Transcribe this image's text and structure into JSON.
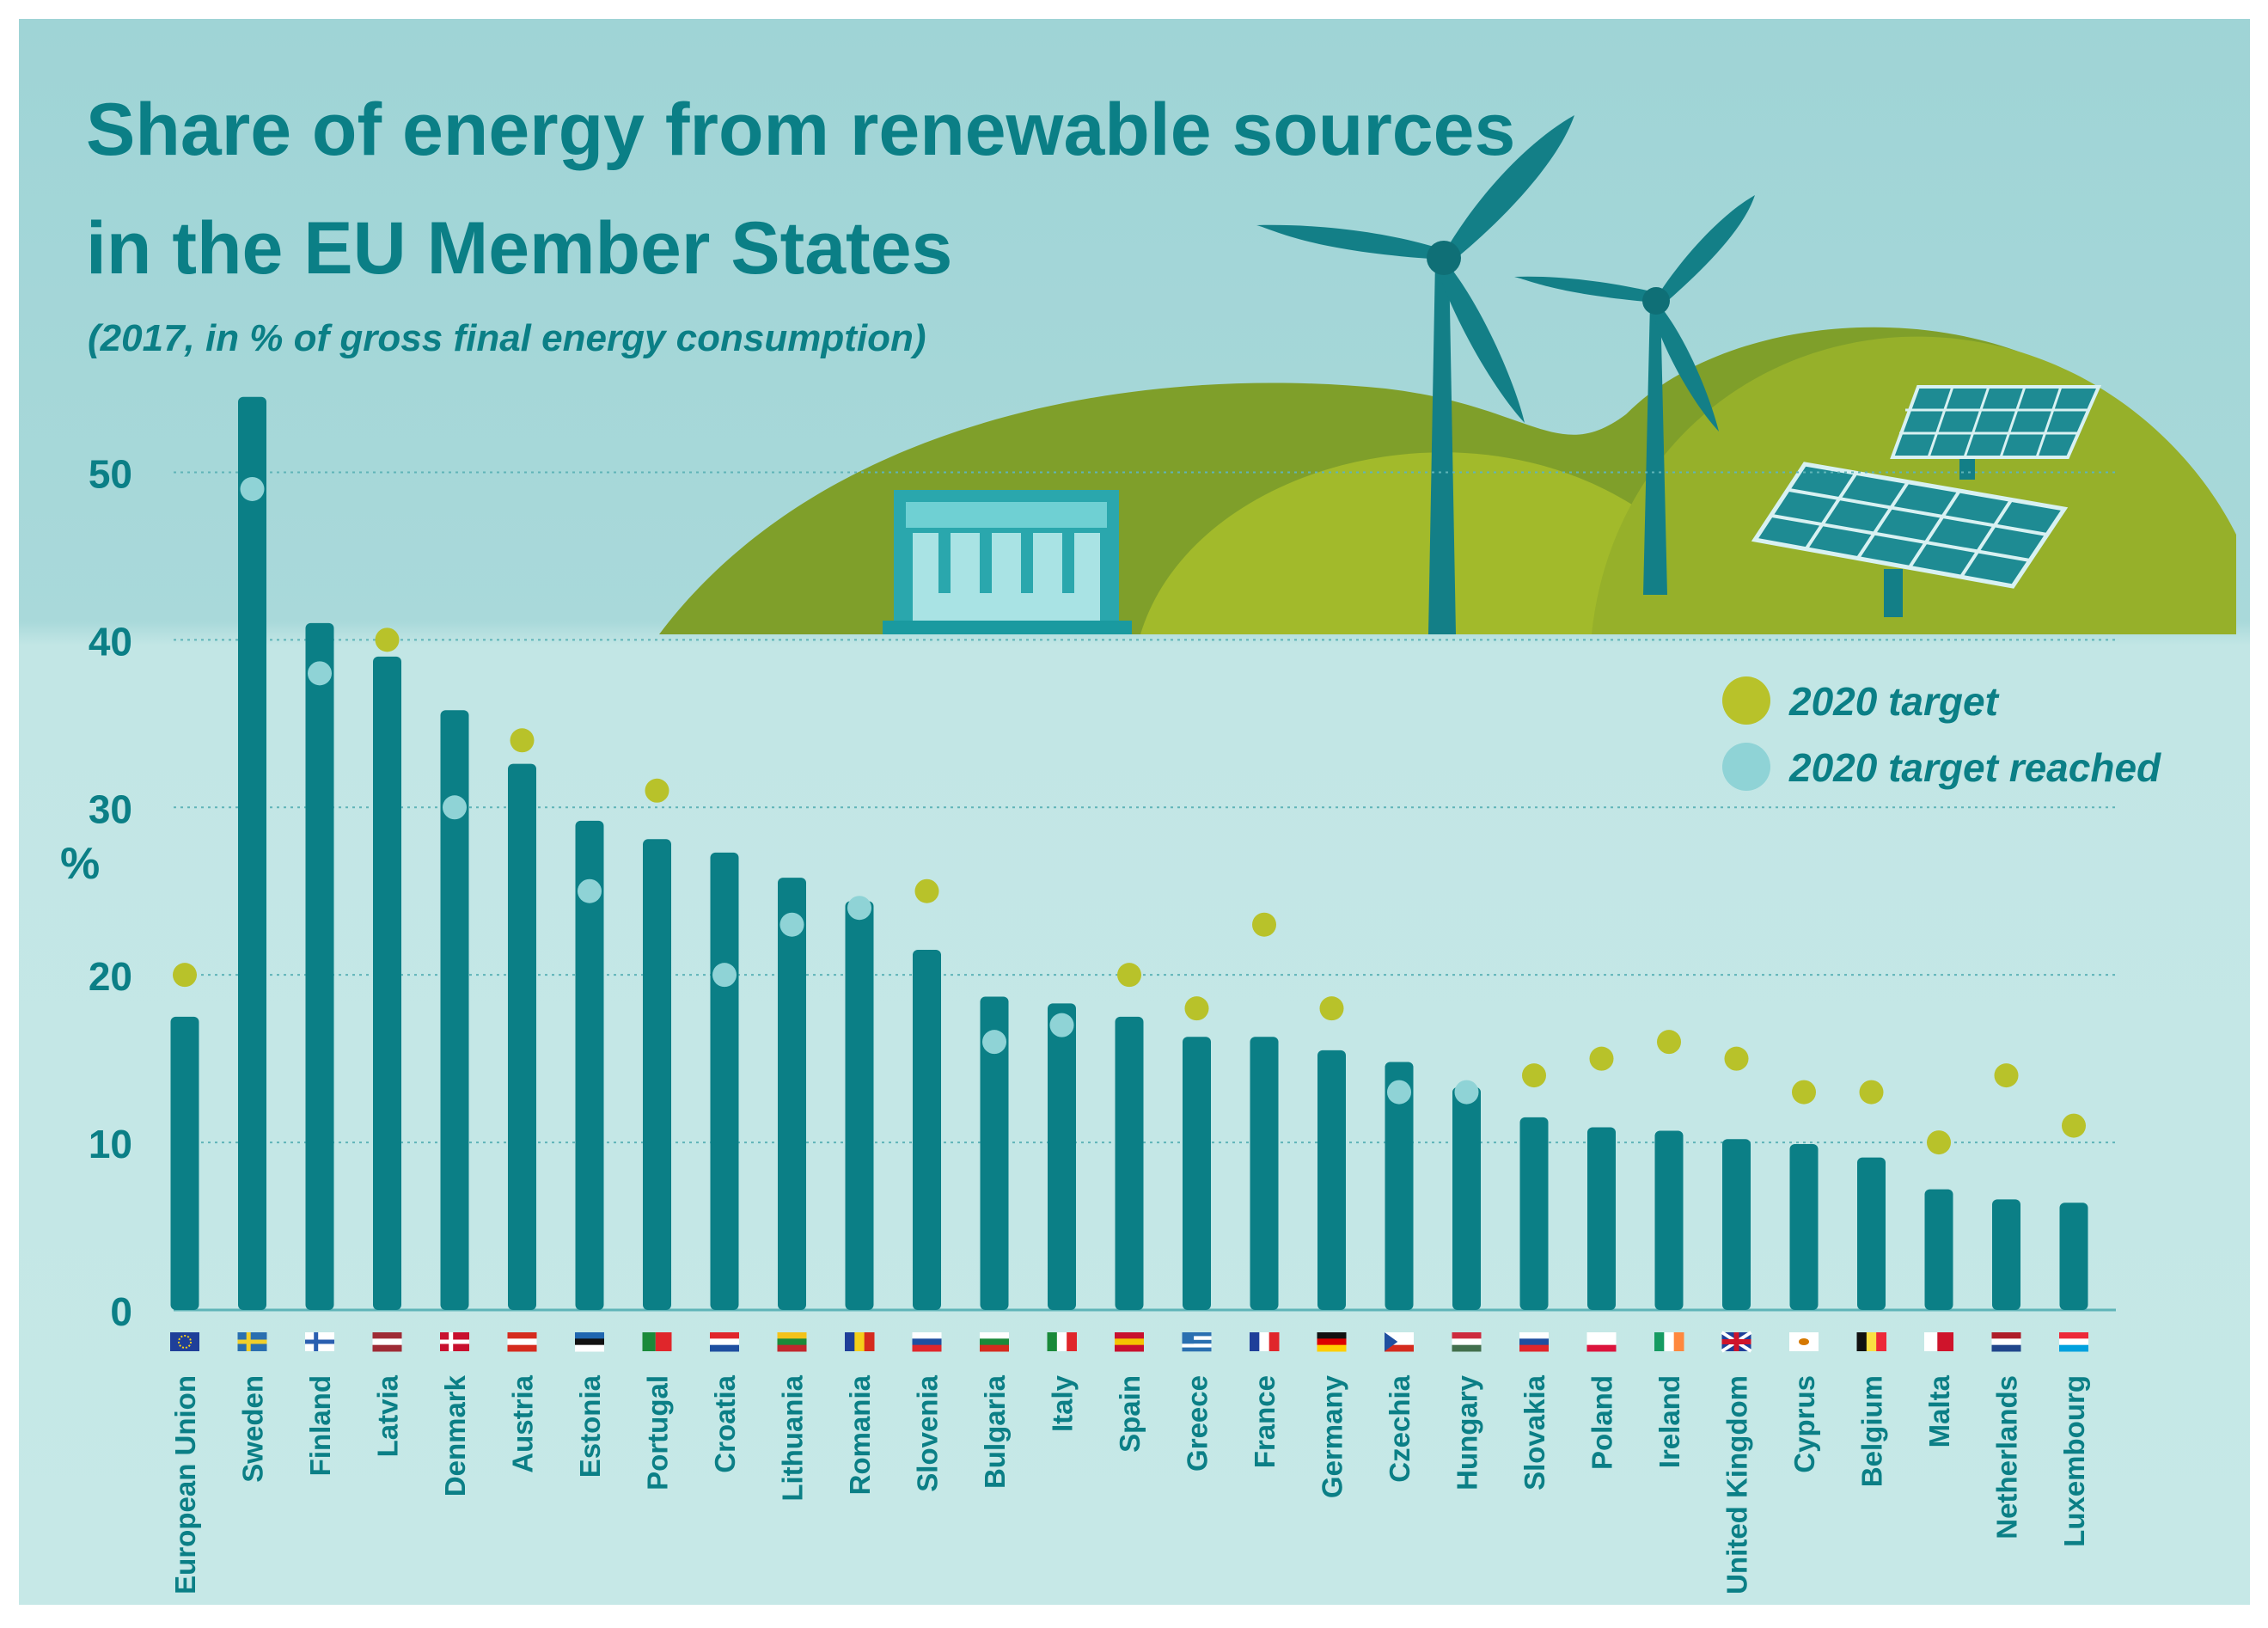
{
  "chart_data": {
    "type": "bar",
    "title_line1": "Share of energy from renewable sources",
    "title_line2": "in the EU Member States",
    "subtitle": "(2017, in % of gross final energy consumption)",
    "ylabel": "%",
    "ylim": [
      0,
      55
    ],
    "yticks": [
      "0",
      "10",
      "20",
      "30",
      "40",
      "50"
    ],
    "grid": true,
    "legend_position": "top-right",
    "legend": [
      {
        "name": "2020 target",
        "color": "#b8c22a"
      },
      {
        "name": "2020 target reached",
        "color": "#8fd3d6"
      }
    ],
    "categories": [
      "European Union",
      "Sweden",
      "Finland",
      "Latvia",
      "Denmark",
      "Austria",
      "Estonia",
      "Portugal",
      "Croatia",
      "Lithuania",
      "Romania",
      "Slovenia",
      "Bulgaria",
      "Italy",
      "Spain",
      "Greece",
      "France",
      "Germany",
      "Czechia",
      "Hungary",
      "Slovakia",
      "Poland",
      "Ireland",
      "United Kingdom",
      "Cyprus",
      "Belgium",
      "Malta",
      "Netherlands",
      "Luxembourg"
    ],
    "values": [
      17.5,
      54.5,
      41.0,
      39.0,
      35.8,
      32.6,
      29.2,
      28.1,
      27.3,
      25.8,
      24.4,
      21.5,
      18.7,
      18.3,
      17.5,
      16.3,
      16.3,
      15.5,
      14.8,
      13.3,
      11.5,
      10.9,
      10.7,
      10.2,
      9.9,
      9.1,
      7.2,
      6.6,
      6.4
    ],
    "targets": [
      20,
      49,
      38,
      40,
      30,
      34,
      25,
      31,
      20,
      23,
      24,
      25,
      16,
      17,
      20,
      18,
      23,
      18,
      13,
      13,
      14,
      15,
      16,
      15,
      13,
      13,
      10,
      14,
      11
    ],
    "reached": [
      false,
      true,
      true,
      false,
      true,
      false,
      true,
      false,
      true,
      true,
      true,
      false,
      true,
      true,
      false,
      false,
      false,
      false,
      true,
      true,
      false,
      false,
      false,
      false,
      false,
      false,
      false,
      false,
      false
    ],
    "colors": {
      "bar": "#0b7f86",
      "target": "#b8c22a",
      "reached": "#8fd3d6",
      "grid": "#5fb4b8",
      "text": "#0b7f86",
      "hill_dark": "#7f9f2a",
      "hill_light": "#a2ba2b",
      "turbine": "#137f87",
      "panel": "#1e8b93",
      "dam": "#3fb5b9"
    },
    "flags": [
      {
        "type": "eu"
      },
      {
        "type": "cross",
        "bg": "#2a6fb0",
        "cross": "#f2cf2a"
      },
      {
        "type": "cross",
        "bg": "#ffffff",
        "cross": "#2a5fb0"
      },
      {
        "type": "h",
        "colors": [
          "#9e2b35",
          "#ffffff",
          "#9e2b35"
        ]
      },
      {
        "type": "cross",
        "bg": "#c8102e",
        "cross": "#ffffff"
      },
      {
        "type": "h",
        "colors": [
          "#d52b1e",
          "#ffffff",
          "#d52b1e"
        ]
      },
      {
        "type": "h",
        "colors": [
          "#1f66b0",
          "#111111",
          "#ffffff"
        ]
      },
      {
        "type": "v2",
        "colors": [
          "#1a8a3a",
          "#e0262b"
        ]
      },
      {
        "type": "h",
        "colors": [
          "#e0262b",
          "#ffffff",
          "#1f4fa0"
        ]
      },
      {
        "type": "h",
        "colors": [
          "#f3c21a",
          "#1a8a3a",
          "#c1272d"
        ]
      },
      {
        "type": "v",
        "colors": [
          "#1f3f99",
          "#f5cf1a",
          "#d52b1e"
        ]
      },
      {
        "type": "h",
        "colors": [
          "#ffffff",
          "#1f4fa0",
          "#e0262b"
        ]
      },
      {
        "type": "h",
        "colors": [
          "#ffffff",
          "#1a8a3a",
          "#d52b1e"
        ]
      },
      {
        "type": "v",
        "colors": [
          "#1a8a3a",
          "#ffffff",
          "#e0262b"
        ]
      },
      {
        "type": "h",
        "colors": [
          "#c8102e",
          "#f5c400",
          "#c8102e"
        ]
      },
      {
        "type": "stripes",
        "colors": [
          "#2a6fb0",
          "#ffffff"
        ]
      },
      {
        "type": "v",
        "colors": [
          "#1f3f99",
          "#ffffff",
          "#e0262b"
        ]
      },
      {
        "type": "h",
        "colors": [
          "#111111",
          "#dd0000",
          "#ffce00"
        ]
      },
      {
        "type": "h",
        "colors": [
          "#ffffff",
          "#ffffff",
          "#d52b1e"
        ],
        "triangle": "#1f4fa0"
      },
      {
        "type": "h",
        "colors": [
          "#cd2a3e",
          "#ffffff",
          "#436f4d"
        ]
      },
      {
        "type": "h",
        "colors": [
          "#ffffff",
          "#1f4fa0",
          "#e0262b"
        ]
      },
      {
        "type": "h",
        "colors": [
          "#ffffff",
          "#ffffff",
          "#dc143c"
        ]
      },
      {
        "type": "v",
        "colors": [
          "#169b62",
          "#ffffff",
          "#ff883e"
        ]
      },
      {
        "type": "uk"
      },
      {
        "type": "plain",
        "colors": [
          "#ffffff"
        ],
        "dot": "#d57800"
      },
      {
        "type": "v",
        "colors": [
          "#111111",
          "#fae042",
          "#ed2939"
        ]
      },
      {
        "type": "v2",
        "colors": [
          "#ffffff",
          "#cf142b"
        ]
      },
      {
        "type": "h",
        "colors": [
          "#ae1c28",
          "#ffffff",
          "#21468b"
        ]
      },
      {
        "type": "h",
        "colors": [
          "#ed2939",
          "#ffffff",
          "#00a1de"
        ]
      }
    ]
  }
}
